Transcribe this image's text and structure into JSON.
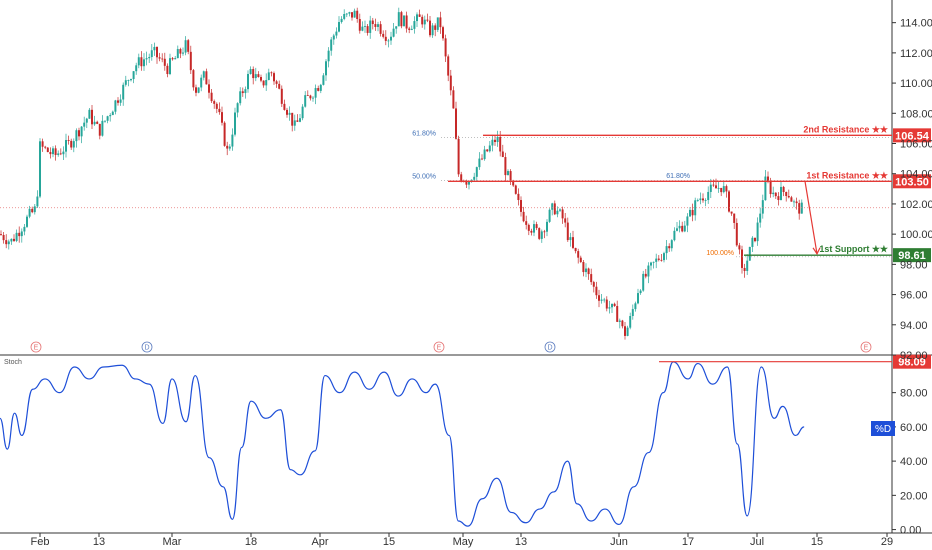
{
  "chart_data": [
    {
      "type": "candlestick",
      "title": "",
      "x_ticks": [
        "Feb",
        "13",
        "Mar",
        "18",
        "Apr",
        "15",
        "May",
        "13",
        "Jun",
        "17",
        "Jul",
        "15",
        "29"
      ],
      "y_ticks": [
        "114.00",
        "112.00",
        "110.00",
        "108.00",
        "106.00",
        "104.00",
        "102.00",
        "100.00",
        "98.00",
        "96.00",
        "94.00",
        "92.00"
      ],
      "ylim": [
        92,
        115.5
      ],
      "close_path": [
        {
          "x": "Jan 21",
          "y": 100.0
        },
        {
          "x": "Jan 24",
          "y": 99.5
        },
        {
          "x": "Jan 29",
          "y": 101.2
        },
        {
          "x": "Jan 31",
          "y": 101.7
        },
        {
          "x": "Feb 1",
          "y": 105.8
        },
        {
          "x": "Feb 4",
          "y": 105.2
        },
        {
          "x": "Feb 7",
          "y": 106.0
        },
        {
          "x": "Feb 11",
          "y": 107.9
        },
        {
          "x": "Feb 13",
          "y": 106.8
        },
        {
          "x": "Feb 18",
          "y": 109.5
        },
        {
          "x": "Feb 21",
          "y": 111.2
        },
        {
          "x": "Feb 25",
          "y": 112.0
        },
        {
          "x": "Feb 28",
          "y": 111.0
        },
        {
          "x": "Mar 4",
          "y": 112.5
        },
        {
          "x": "Mar 6",
          "y": 109.5
        },
        {
          "x": "Mar 8",
          "y": 110.5
        },
        {
          "x": "Mar 11",
          "y": 108.0
        },
        {
          "x": "Mar 13",
          "y": 105.3
        },
        {
          "x": "Mar 15",
          "y": 108.5
        },
        {
          "x": "Mar 18",
          "y": 110.9
        },
        {
          "x": "Mar 20",
          "y": 109.8
        },
        {
          "x": "Mar 22",
          "y": 110.8
        },
        {
          "x": "Mar 25",
          "y": 108.5
        },
        {
          "x": "Mar 27",
          "y": 107.0
        },
        {
          "x": "Mar 29",
          "y": 108.8
        },
        {
          "x": "Apr 1",
          "y": 110.0
        },
        {
          "x": "Apr 3",
          "y": 112.5
        },
        {
          "x": "Apr 5",
          "y": 114.2
        },
        {
          "x": "Apr 8",
          "y": 114.6
        },
        {
          "x": "Apr 10",
          "y": 113.3
        },
        {
          "x": "Apr 12",
          "y": 114.1
        },
        {
          "x": "Apr 15",
          "y": 113.0
        },
        {
          "x": "Apr 17",
          "y": 114.4
        },
        {
          "x": "Apr 19",
          "y": 113.8
        },
        {
          "x": "Apr 22",
          "y": 114.3
        },
        {
          "x": "Apr 24",
          "y": 113.4
        },
        {
          "x": "Apr 26",
          "y": 114.1
        },
        {
          "x": "Apr 29",
          "y": 108.0
        },
        {
          "x": "Apr 30",
          "y": 104.0
        },
        {
          "x": "May 2",
          "y": 103.5
        },
        {
          "x": "May 6",
          "y": 105.5
        },
        {
          "x": "May 8",
          "y": 106.4
        },
        {
          "x": "May 10",
          "y": 104.0
        },
        {
          "x": "May 13",
          "y": 101.5
        },
        {
          "x": "May 15",
          "y": 100.5
        },
        {
          "x": "May 17",
          "y": 100.0
        },
        {
          "x": "May 20",
          "y": 101.8
        },
        {
          "x": "May 22",
          "y": 101.0
        },
        {
          "x": "May 24",
          "y": 99.0
        },
        {
          "x": "May 27",
          "y": 97.5
        },
        {
          "x": "May 29",
          "y": 96.2
        },
        {
          "x": "May 31",
          "y": 95.5
        },
        {
          "x": "Jun 3",
          "y": 94.5
        },
        {
          "x": "Jun 4",
          "y": 93.3
        },
        {
          "x": "Jun 5",
          "y": 94.0
        },
        {
          "x": "Jun 7",
          "y": 96.5
        },
        {
          "x": "Jun 10",
          "y": 98.0
        },
        {
          "x": "Jun 12",
          "y": 98.8
        },
        {
          "x": "Jun 14",
          "y": 100.0
        },
        {
          "x": "Jun 17",
          "y": 101.0
        },
        {
          "x": "Jun 19",
          "y": 102.3
        },
        {
          "x": "Jun 21",
          "y": 102.8
        },
        {
          "x": "Jun 24",
          "y": 103.2
        },
        {
          "x": "Jun 26",
          "y": 101.2
        },
        {
          "x": "Jun 27",
          "y": 99.5
        },
        {
          "x": "Jun 28",
          "y": 97.3
        },
        {
          "x": "Jul 1",
          "y": 100.3
        },
        {
          "x": "Jul 3",
          "y": 103.5
        },
        {
          "x": "Jul 5",
          "y": 102.6
        },
        {
          "x": "Jul 8",
          "y": 102.9
        },
        {
          "x": "Jul 10",
          "y": 101.8
        },
        {
          "x": "Jul 12",
          "y": 101.6
        }
      ],
      "levels": [
        {
          "name": "2nd Resistance ★★",
          "value": 106.54,
          "label": "106.54",
          "color": "#e53935"
        },
        {
          "name": "1st Resistance ★★",
          "value": 103.5,
          "label": "103.50",
          "color": "#e53935"
        },
        {
          "name": "1st Support ★★",
          "value": 98.61,
          "label": "98.61",
          "color": "#2e7d32"
        }
      ],
      "fib_labels": [
        {
          "text": "61.80%",
          "y": 106.4
        },
        {
          "text": "50.00%",
          "y": 103.55
        },
        {
          "text": "61.80%",
          "y": 103.6
        },
        {
          "text": "100.00%",
          "y": 98.5
        }
      ],
      "current_price_line": 101.75,
      "event_markers": [
        "E",
        "D",
        "E",
        "D",
        "E"
      ]
    },
    {
      "type": "line",
      "title": "Stoch",
      "legend": "%D",
      "y_ticks": [
        "98.09",
        "80.00",
        "60.00",
        "40.00",
        "20.00",
        "0.00"
      ],
      "ylim": [
        -2,
        102
      ],
      "marker_level": {
        "value": 98.09,
        "label": "98.09"
      },
      "series": [
        {
          "values": [
            {
              "x": "Jan 21",
              "y": 65
            },
            {
              "x": "Jan 23",
              "y": 47
            },
            {
              "x": "Jan 25",
              "y": 68
            },
            {
              "x": "Jan 27",
              "y": 55
            },
            {
              "x": "Jan 30",
              "y": 82
            },
            {
              "x": "Feb 2",
              "y": 88
            },
            {
              "x": "Feb 5",
              "y": 80
            },
            {
              "x": "Feb 8",
              "y": 95
            },
            {
              "x": "Feb 11",
              "y": 88
            },
            {
              "x": "Feb 14",
              "y": 95
            },
            {
              "x": "Feb 18",
              "y": 96
            },
            {
              "x": "Feb 21",
              "y": 88
            },
            {
              "x": "Feb 24",
              "y": 85
            },
            {
              "x": "Feb 27",
              "y": 62
            },
            {
              "x": "Mar 1",
              "y": 88
            },
            {
              "x": "Mar 4",
              "y": 63
            },
            {
              "x": "Mar 6",
              "y": 90
            },
            {
              "x": "Mar 9",
              "y": 42
            },
            {
              "x": "Mar 12",
              "y": 25
            },
            {
              "x": "Mar 14",
              "y": 6
            },
            {
              "x": "Mar 16",
              "y": 48
            },
            {
              "x": "Mar 18",
              "y": 75
            },
            {
              "x": "Mar 21",
              "y": 65
            },
            {
              "x": "Mar 24",
              "y": 70
            },
            {
              "x": "Mar 26",
              "y": 35
            },
            {
              "x": "Mar 28",
              "y": 32
            },
            {
              "x": "Mar 31",
              "y": 46
            },
            {
              "x": "Apr 2",
              "y": 90
            },
            {
              "x": "Apr 5",
              "y": 80
            },
            {
              "x": "Apr 8",
              "y": 92
            },
            {
              "x": "Apr 11",
              "y": 82
            },
            {
              "x": "Apr 14",
              "y": 92
            },
            {
              "x": "Apr 17",
              "y": 78
            },
            {
              "x": "Apr 20",
              "y": 88
            },
            {
              "x": "Apr 23",
              "y": 80
            },
            {
              "x": "Apr 25",
              "y": 85
            },
            {
              "x": "Apr 28",
              "y": 55
            },
            {
              "x": "Apr 30",
              "y": 5
            },
            {
              "x": "May 2",
              "y": 2
            },
            {
              "x": "May 5",
              "y": 18
            },
            {
              "x": "May 8",
              "y": 30
            },
            {
              "x": "May 11",
              "y": 10
            },
            {
              "x": "May 14",
              "y": 4
            },
            {
              "x": "May 17",
              "y": 12
            },
            {
              "x": "May 20",
              "y": 22
            },
            {
              "x": "May 23",
              "y": 40
            },
            {
              "x": "May 25",
              "y": 15
            },
            {
              "x": "May 28",
              "y": 5
            },
            {
              "x": "May 31",
              "y": 12
            },
            {
              "x": "Jun 3",
              "y": 3
            },
            {
              "x": "Jun 6",
              "y": 25
            },
            {
              "x": "Jun 9",
              "y": 45
            },
            {
              "x": "Jun 12",
              "y": 80
            },
            {
              "x": "Jun 14",
              "y": 98
            },
            {
              "x": "Jun 17",
              "y": 88
            },
            {
              "x": "Jun 19",
              "y": 97
            },
            {
              "x": "Jun 22",
              "y": 85
            },
            {
              "x": "Jun 25",
              "y": 95
            },
            {
              "x": "Jun 27",
              "y": 50
            },
            {
              "x": "Jun 29",
              "y": 8
            },
            {
              "x": "Jul 2",
              "y": 95
            },
            {
              "x": "Jul 5",
              "y": 65
            },
            {
              "x": "Jul 7",
              "y": 72
            },
            {
              "x": "Jul 10",
              "y": 55
            },
            {
              "x": "Jul 12",
              "y": 60
            }
          ]
        }
      ]
    }
  ]
}
